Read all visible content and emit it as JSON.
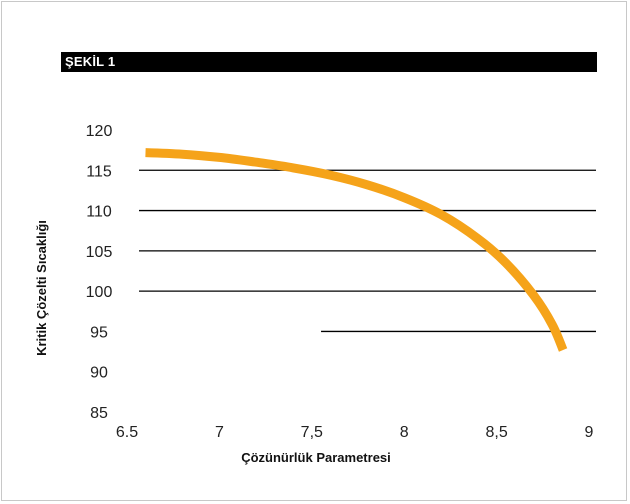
{
  "figure": {
    "label": "ŞEKİL 1"
  },
  "colors": {
    "curve": "#f5a31a",
    "gridline": "#000000",
    "banner": "#000000",
    "text": "#222222"
  },
  "chart_data": {
    "type": "line",
    "xlabel": "Çözünürlük Parametresi",
    "ylabel": "Kritik Çözelti Sıcaklığı",
    "xlim": [
      6.5,
      9
    ],
    "ylim": [
      85,
      120
    ],
    "x_ticks": [
      "6.5",
      "7",
      "7,5",
      "8",
      "8,5",
      "9"
    ],
    "y_ticks": [
      "120",
      "115",
      "110",
      "105",
      "100",
      "95",
      "90",
      "85"
    ],
    "gridlines": [
      {
        "y": 115,
        "x_start": 6.5,
        "x_end": 9.0
      },
      {
        "y": 110,
        "x_start": 6.5,
        "x_end": 9.0
      },
      {
        "y": 105,
        "x_start": 6.5,
        "x_end": 9.0
      },
      {
        "y": 100,
        "x_start": 6.5,
        "x_end": 9.0
      },
      {
        "y": 95,
        "x_start": 7.55,
        "x_end": 9.0
      }
    ],
    "series": [
      {
        "x": [
          6.6,
          6.8,
          7.0,
          7.2,
          7.4,
          7.6,
          7.8,
          8.0,
          8.2,
          8.4,
          8.55,
          8.7,
          8.8,
          8.86
        ],
        "y": [
          117.2,
          117.0,
          116.6,
          116.0,
          115.3,
          114.4,
          113.2,
          111.6,
          109.5,
          106.5,
          103.5,
          99.5,
          95.9,
          92.7
        ]
      }
    ],
    "grid": true,
    "legend": "none"
  }
}
